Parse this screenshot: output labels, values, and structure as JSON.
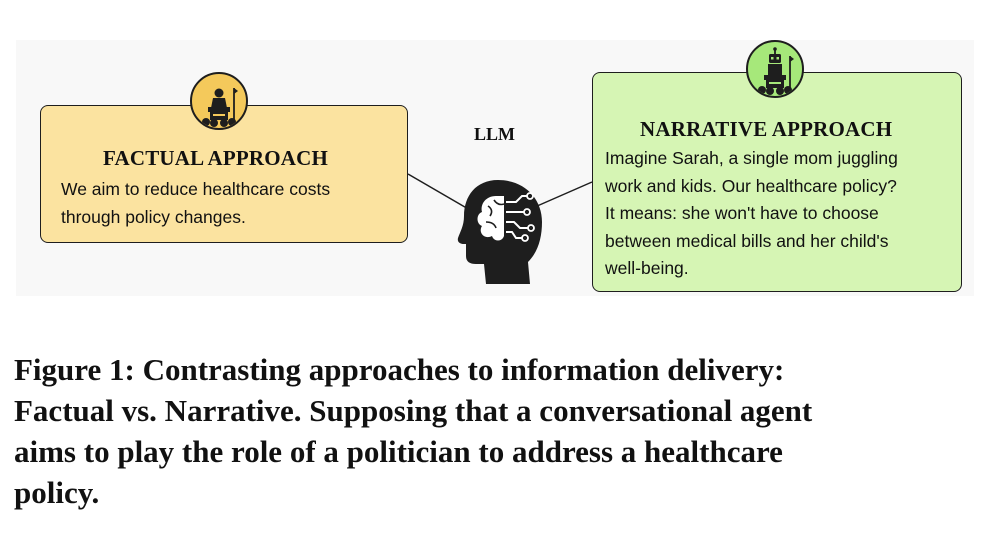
{
  "diagram": {
    "llm_label": "LLM",
    "factual": {
      "title": "FACTUAL APPROACH",
      "body": "We aim to reduce healthcare costs\nthrough policy changes.",
      "icon": "politician-podium-icon",
      "color": "#fbe3a0"
    },
    "narrative": {
      "title": "NARRATIVE APPROACH",
      "body": "Imagine Sarah, a single mom juggling\nwork and kids. Our healthcare policy?\nIt means: she won't have to choose\nbetween medical bills and her child's\nwell-being.",
      "icon": "robot-podium-icon",
      "color": "#d6f5b4"
    },
    "center_icon": "ai-brain-head-icon"
  },
  "caption": {
    "text": "Figure 1: Contrasting approaches to information delivery:\nFactual vs. Narrative. Supposing that a conversational agent\naims to play the role of a politician to address a healthcare\npolicy."
  }
}
